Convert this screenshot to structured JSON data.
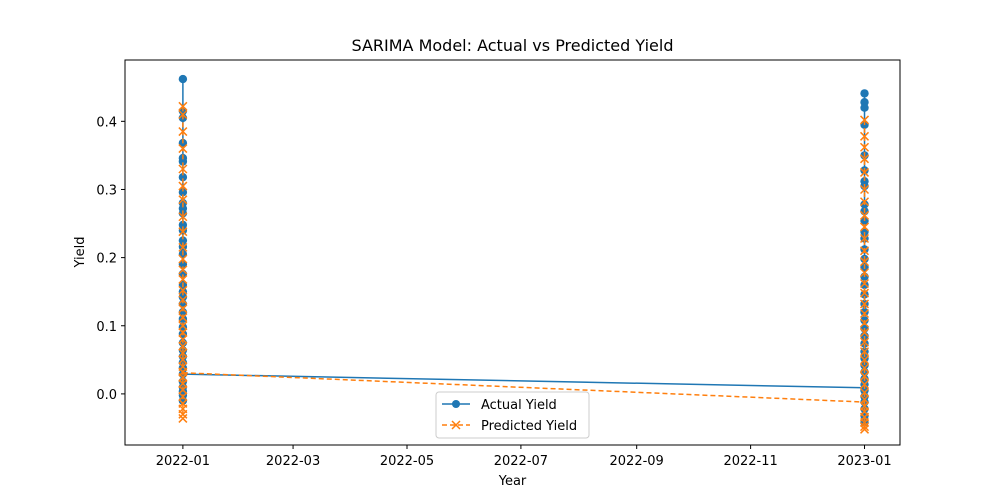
{
  "chart_data": {
    "type": "line",
    "title": "SARIMA Model: Actual vs Predicted Yield",
    "xlabel": "Year",
    "ylabel": "Yield",
    "xlim": [
      "2021-12-01",
      "2023-01-20"
    ],
    "ylim": [
      -0.075,
      0.49
    ],
    "x_ticks": [
      "2022-01-01",
      "2022-03-01",
      "2022-05-01",
      "2022-07-01",
      "2022-09-01",
      "2022-11-01",
      "2023-01-01"
    ],
    "x_tick_labels": [
      "2022-01",
      "2022-03",
      "2022-05",
      "2022-07",
      "2022-09",
      "2022-11",
      "2023-01"
    ],
    "y_ticks": [
      0.0,
      0.1,
      0.2,
      0.3,
      0.4
    ],
    "y_tick_labels": [
      "0.0",
      "0.1",
      "0.2",
      "0.3",
      "0.4"
    ],
    "legend_position": "bottom-center",
    "series": [
      {
        "name": "Actual Yield",
        "color": "#1f77b4",
        "marker": "circle",
        "linestyle": "solid",
        "x": [
          "2022-01-01",
          "2023-01-01"
        ],
        "y_values": [
          [
            0.462,
            0.415,
            0.405,
            0.368,
            0.346,
            0.341,
            0.318,
            0.296,
            0.28,
            0.272,
            0.265,
            0.248,
            0.24,
            0.225,
            0.216,
            0.205,
            0.19,
            0.176,
            0.16,
            0.15,
            0.142,
            0.132,
            0.12,
            0.11,
            0.098,
            0.088,
            0.075,
            0.064,
            0.055,
            0.046,
            0.038,
            0.029,
            0.018,
            0.01,
            0.004,
            -0.002,
            -0.01
          ],
          [
            0.441,
            0.428,
            0.42,
            0.395,
            0.35,
            0.328,
            0.312,
            0.305,
            0.278,
            0.268,
            0.254,
            0.238,
            0.228,
            0.212,
            0.198,
            0.186,
            0.172,
            0.16,
            0.146,
            0.132,
            0.12,
            0.108,
            0.096,
            0.085,
            0.074,
            0.062,
            0.052,
            0.042,
            0.032,
            0.022,
            0.014,
            0.005,
            -0.004,
            -0.012,
            -0.022,
            -0.032,
            -0.042
          ]
        ],
        "last_points": [
          0.029,
          0.009
        ]
      },
      {
        "name": "Predicted Yield",
        "color": "#ff7f0e",
        "marker": "x",
        "linestyle": "dashed",
        "x": [
          "2022-01-01",
          "2023-01-01"
        ],
        "y_values": [
          [
            0.422,
            0.41,
            0.385,
            0.36,
            0.33,
            0.305,
            0.285,
            0.26,
            0.238,
            0.215,
            0.198,
            0.182,
            0.168,
            0.152,
            0.138,
            0.125,
            0.112,
            0.1,
            0.09,
            0.08,
            0.07,
            0.06,
            0.05,
            0.04,
            0.032,
            0.024,
            0.015,
            0.006,
            -0.004,
            -0.014,
            -0.022,
            -0.03,
            -0.036
          ],
          [
            0.402,
            0.378,
            0.362,
            0.345,
            0.325,
            0.3,
            0.282,
            0.262,
            0.245,
            0.228,
            0.21,
            0.194,
            0.178,
            0.162,
            0.148,
            0.132,
            0.118,
            0.104,
            0.09,
            0.076,
            0.062,
            0.05,
            0.038,
            0.026,
            0.014,
            0.002,
            -0.008,
            -0.018,
            -0.026,
            -0.034,
            -0.042,
            -0.048,
            -0.052
          ]
        ],
        "last_points": [
          0.031,
          -0.012
        ]
      }
    ]
  }
}
